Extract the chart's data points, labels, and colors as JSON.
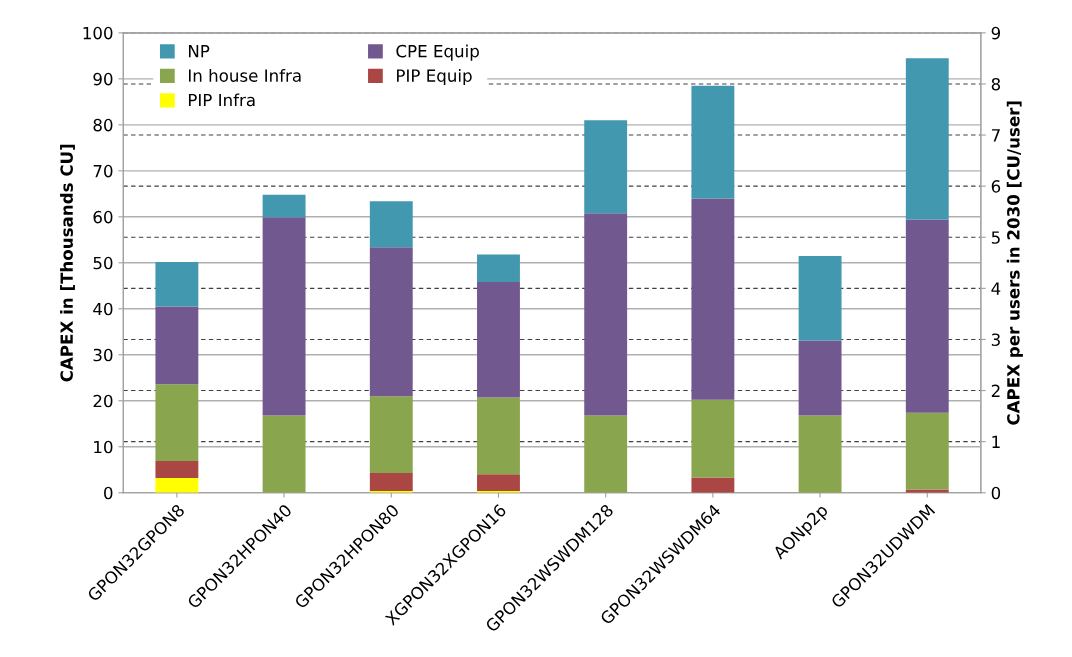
{
  "chart_data": {
    "type": "bar",
    "stacked": true,
    "categories": [
      "GPON32GPON8",
      "GPON32HPON40",
      "GPON32HPON80",
      "XGPON32XGPON16",
      "GPON32WSWDM128",
      "GPON32WSWDM64",
      "AONp2p",
      "GPON32UDWDM"
    ],
    "series": [
      {
        "name": "PIP Infra",
        "color": "#ffff00",
        "values": [
          3.2,
          0,
          0.4,
          0.4,
          0,
          0,
          0,
          0
        ]
      },
      {
        "name": "PIP Equip",
        "color": "#aa4643",
        "values": [
          3.7,
          0,
          3.9,
          3.6,
          0,
          3.3,
          0,
          0.7
        ]
      },
      {
        "name": "In house Infra",
        "color": "#89a54e",
        "values": [
          16.7,
          16.8,
          16.7,
          16.7,
          16.8,
          16.9,
          16.8,
          16.7
        ]
      },
      {
        "name": "CPE Equip",
        "color": "#71588f",
        "values": [
          16.9,
          43.1,
          32.4,
          25.1,
          44.0,
          43.8,
          16.3,
          42.0
        ]
      },
      {
        "name": "NP",
        "color": "#4198af",
        "values": [
          9.7,
          4.9,
          10.0,
          6.0,
          20.2,
          24.5,
          18.4,
          35.1
        ]
      }
    ],
    "ylabel": "CAPEX in [Thousands CU]",
    "y2label": "CAPEX per users in 2030 [CU/user]",
    "ylim": [
      0,
      100
    ],
    "yticks": [
      0,
      10,
      20,
      30,
      40,
      50,
      60,
      70,
      80,
      90,
      100
    ],
    "y2lim": [
      0,
      9
    ],
    "y2ticks": [
      0,
      1,
      2,
      3,
      4,
      5,
      6,
      7,
      8,
      9
    ],
    "grid": true,
    "legend": "top left"
  }
}
